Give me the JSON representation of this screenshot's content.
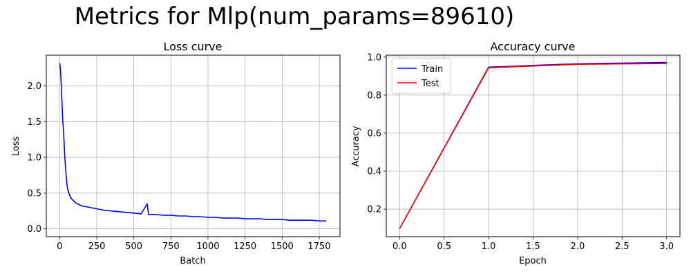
{
  "suptitle": "Metrics for Mlp(num_params=89610)",
  "chart_data": [
    {
      "type": "line",
      "title": "Loss curve",
      "xlabel": "Batch",
      "ylabel": "Loss",
      "xlim": [
        -90,
        1890
      ],
      "ylim": [
        -0.11,
        2.43
      ],
      "xticks": [
        0,
        250,
        500,
        750,
        1000,
        1250,
        1500,
        1750
      ],
      "xtick_labels": [
        "0",
        "250",
        "500",
        "750",
        "1000",
        "1250",
        "1500",
        "1750"
      ],
      "yticks": [
        0.0,
        0.5,
        1.0,
        1.5,
        2.0
      ],
      "ytick_labels": [
        "0.0",
        "0.5",
        "1.0",
        "1.5",
        "2.0"
      ],
      "grid": true,
      "series": [
        {
          "color": "#0000ff",
          "x": [
            0,
            5,
            10,
            15,
            20,
            25,
            30,
            35,
            40,
            45,
            50,
            55,
            60,
            65,
            70,
            75,
            80,
            90,
            100,
            110,
            120,
            130,
            140,
            150,
            175,
            200,
            225,
            250,
            275,
            300,
            350,
            400,
            450,
            500,
            550,
            590,
            600,
            650,
            700,
            750,
            800,
            850,
            900,
            950,
            1000,
            1050,
            1100,
            1150,
            1200,
            1250,
            1300,
            1350,
            1400,
            1450,
            1500,
            1550,
            1600,
            1650,
            1700,
            1750,
            1798
          ],
          "y": [
            2.32,
            2.25,
            2.05,
            1.82,
            1.55,
            1.4,
            1.2,
            1.0,
            0.85,
            0.72,
            0.6,
            0.55,
            0.52,
            0.48,
            0.46,
            0.44,
            0.42,
            0.4,
            0.38,
            0.36,
            0.35,
            0.34,
            0.33,
            0.32,
            0.31,
            0.3,
            0.29,
            0.28,
            0.27,
            0.26,
            0.25,
            0.24,
            0.23,
            0.22,
            0.21,
            0.35,
            0.2,
            0.2,
            0.19,
            0.19,
            0.18,
            0.18,
            0.17,
            0.17,
            0.16,
            0.16,
            0.15,
            0.15,
            0.15,
            0.14,
            0.14,
            0.14,
            0.13,
            0.13,
            0.13,
            0.12,
            0.12,
            0.12,
            0.12,
            0.11,
            0.11
          ]
        }
      ]
    },
    {
      "type": "line",
      "title": "Accuracy curve",
      "xlabel": "Epoch",
      "ylabel": "Accuracy",
      "xlim": [
        -0.15,
        3.15
      ],
      "ylim": [
        0.055,
        1.01
      ],
      "xticks": [
        0.0,
        0.5,
        1.0,
        1.5,
        2.0,
        2.5,
        3.0
      ],
      "xtick_labels": [
        "0.0",
        "0.5",
        "1.0",
        "1.5",
        "2.0",
        "2.5",
        "3.0"
      ],
      "yticks": [
        0.2,
        0.4,
        0.6,
        0.8,
        1.0
      ],
      "ytick_labels": [
        "0.2",
        "0.4",
        "0.6",
        "0.8",
        "1.0"
      ],
      "grid": true,
      "legend": "upper-left",
      "series": [
        {
          "name": "Train",
          "color": "#0000ff",
          "x": [
            0,
            1,
            2,
            3
          ],
          "y": [
            0.098,
            0.947,
            0.965,
            0.972
          ]
        },
        {
          "name": "Test",
          "color": "#ff0000",
          "x": [
            0,
            1,
            2,
            3
          ],
          "y": [
            0.097,
            0.944,
            0.962,
            0.966
          ]
        }
      ]
    }
  ]
}
